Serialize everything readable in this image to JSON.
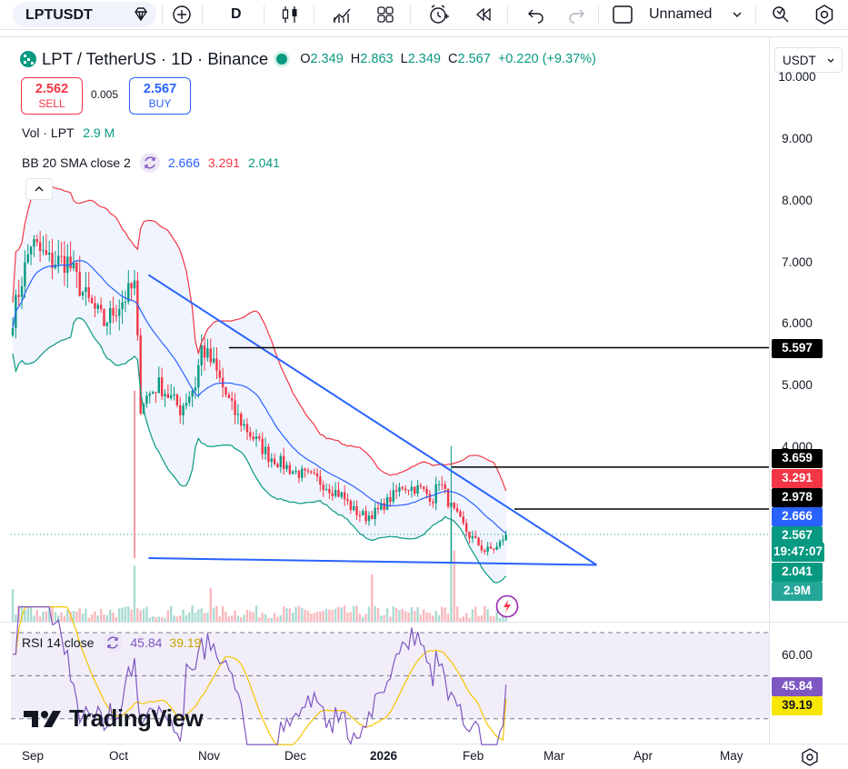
{
  "toolbar": {
    "symbol": "LPTUSDT",
    "interval": "D",
    "layout_name": "Unnamed",
    "icons": [
      "diamond-icon",
      "plus-circle-icon",
      "candles-icon",
      "indicators-icon",
      "layouts-icon",
      "alert-icon",
      "replay-icon",
      "undo-icon",
      "redo-icon",
      "layout-square-icon",
      "chevron-down-icon",
      "search-icon",
      "settings-icon"
    ]
  },
  "legend": {
    "title": "LPT / TetherUS · 1D · Binance",
    "o_label": "O",
    "o": "2.349",
    "h_label": "H",
    "h": "2.863",
    "l_label": "L",
    "l": "2.349",
    "c_label": "C",
    "c": "2.567",
    "change": "+0.220 (+9.37%)",
    "dot_color": "#089981"
  },
  "trade": {
    "sell_price": "2.562",
    "sell_label": "SELL",
    "spread": "0.005",
    "buy_price": "2.567",
    "buy_label": "BUY"
  },
  "indicators": {
    "vol_label": "Vol · LPT",
    "vol_value": "2.9 M",
    "bb_label": "BB 20 SMA close 2",
    "bb_mid": "2.666",
    "bb_upper": "3.291",
    "bb_lower": "2.041",
    "rsi_label": "RSI 14 close",
    "rsi_value": "45.84",
    "rsi_ma": "39.19"
  },
  "currency": "USDT",
  "price_axis": {
    "ticks": [
      "10.000",
      "9.000",
      "8.000",
      "7.000",
      "6.000",
      "5.000",
      "4.000"
    ],
    "tags": [
      {
        "value": "5.597",
        "bg": "#000000"
      },
      {
        "value": "3.659",
        "bg": "#000000"
      },
      {
        "value": "3.291",
        "bg": "#f23645"
      },
      {
        "value": "2.978",
        "bg": "#000000"
      },
      {
        "value": "2.666",
        "bg": "#2962ff"
      },
      {
        "value": "2.567",
        "bg": "#089981"
      },
      {
        "value": "19:47:07",
        "bg": "#089981"
      },
      {
        "value": "2.041",
        "bg": "#089981"
      },
      {
        "value": "2.9M",
        "bg": "#26a69a"
      }
    ]
  },
  "rsi_axis": {
    "ticks": [
      "60.00"
    ],
    "tags": [
      {
        "value": "45.84",
        "bg": "#7e57c2"
      },
      {
        "value": "39.19",
        "bg": "#f7e600"
      }
    ]
  },
  "time_axis": [
    "Sep",
    "Oct",
    "Nov",
    "Dec",
    "2026",
    "Feb",
    "Mar",
    "Apr",
    "May"
  ],
  "brand": "TradingView",
  "colors": {
    "up": "#089981",
    "down": "#f23645",
    "bb_upper": "#f23645",
    "bb_mid": "#2962ff",
    "bb_lower": "#089981",
    "trendline": "#2962ff",
    "rsi": "#7e57c2",
    "rsi_ma": "#f5c400"
  },
  "chart_data": {
    "type": "candlestick",
    "title": "LPT / TetherUS · 1D · Binance",
    "x_range": [
      "2025-09-01",
      "2026-05-20"
    ],
    "y_range": [
      1.6,
      10.2
    ],
    "last_close": 2.567,
    "horizontal_lines": [
      5.597,
      3.659,
      2.978
    ],
    "trendlines": [
      {
        "from": {
          "date": "2025-10-11",
          "price": 6.78
        },
        "to": {
          "date": "2026-03-16",
          "price": 2.07
        }
      },
      {
        "from": {
          "date": "2025-10-11",
          "price": 2.18
        },
        "to": {
          "date": "2026-03-16",
          "price": 2.07
        }
      }
    ],
    "series": [
      {
        "name": "Vol · LPT",
        "last": 2.9,
        "unit": "M"
      },
      {
        "name": "BB 20 SMA close 2",
        "upper": 3.291,
        "basis": 2.666,
        "lower": 2.041
      },
      {
        "name": "RSI 14 close",
        "rsi": 45.84,
        "ma": 39.19,
        "levels": [
          70,
          50,
          30
        ]
      }
    ]
  }
}
